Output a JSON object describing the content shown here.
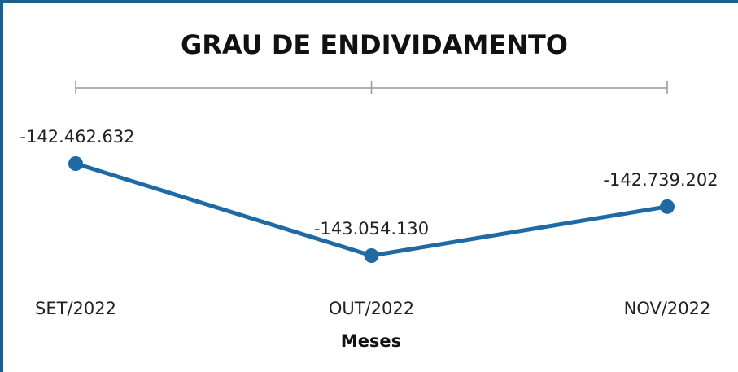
{
  "chart_data": {
    "type": "line",
    "title": "GRAU DE ENDIVIDAMENTO",
    "x_label": "Meses",
    "categories": [
      "SET/2022",
      "OUT/2022",
      "NOV/2022"
    ],
    "series": [
      {
        "color": "#1f6aa5",
        "values": [
          -142462632,
          -143054130,
          -142739202
        ],
        "value_labels": [
          "-142.462.632",
          "-143.054.130",
          "-142.739.202"
        ]
      }
    ]
  }
}
